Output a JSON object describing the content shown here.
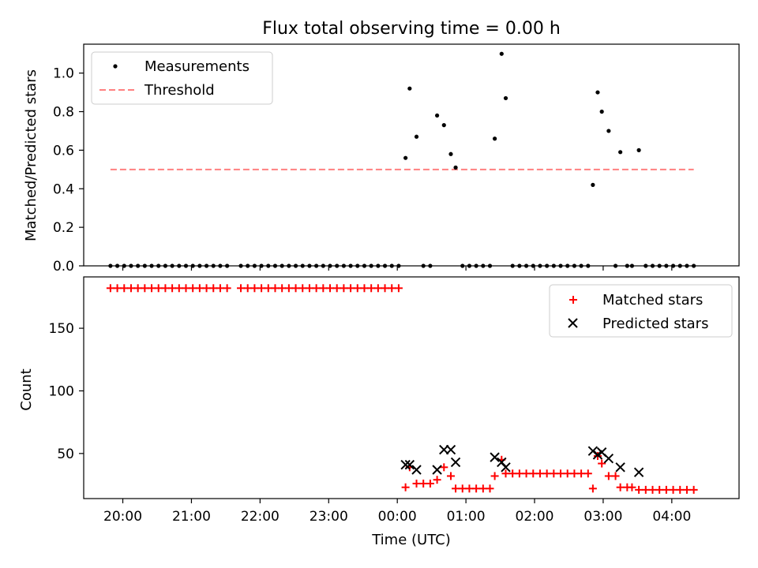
{
  "chart_data": [
    {
      "type": "scatter",
      "title": "Flux total observing time = 0.00 h",
      "xlabel": "",
      "ylabel": "Matched/Predicted stars",
      "xlim": [
        19.43,
        4.98
      ],
      "ylim": [
        0,
        1.15
      ],
      "yticks": [
        0.0,
        0.2,
        0.4,
        0.6,
        0.8,
        1.0
      ],
      "ytick_labels": [
        "0.0",
        "0.2",
        "0.4",
        "0.6",
        "0.8",
        "1.0"
      ],
      "legend": {
        "position": "top-left",
        "entries": [
          "Measurements",
          "Threshold"
        ]
      },
      "series": [
        {
          "name": "Measurements",
          "marker": "dot",
          "color": "#000000",
          "x_hours": [
            19.82,
            19.92,
            20.02,
            20.12,
            20.22,
            20.32,
            20.42,
            20.52,
            20.62,
            20.72,
            20.82,
            20.92,
            21.02,
            21.12,
            21.22,
            21.32,
            21.42,
            21.52,
            21.72,
            21.82,
            21.92,
            22.02,
            22.12,
            22.22,
            22.32,
            22.42,
            22.52,
            22.62,
            22.72,
            22.82,
            22.92,
            23.02,
            23.12,
            23.22,
            23.32,
            23.42,
            23.52,
            23.62,
            23.72,
            23.82,
            23.92,
            24.02,
            24.12,
            24.18,
            24.28,
            24.38,
            24.48,
            24.58,
            24.68,
            24.78,
            24.85,
            24.95,
            25.05,
            25.15,
            25.25,
            25.35,
            25.42,
            25.52,
            25.58,
            25.68,
            25.78,
            25.88,
            25.98,
            26.08,
            26.18,
            26.28,
            26.38,
            26.48,
            26.58,
            26.68,
            26.78,
            26.85,
            26.92,
            26.98,
            27.08,
            27.18,
            27.25,
            27.35,
            27.42,
            27.52,
            27.62,
            27.72,
            27.82,
            27.92,
            28.02,
            28.12,
            28.22,
            28.32
          ],
          "values": [
            0,
            0,
            0,
            0,
            0,
            0,
            0,
            0,
            0,
            0,
            0,
            0,
            0,
            0,
            0,
            0,
            0,
            0,
            0,
            0,
            0,
            0,
            0,
            0,
            0,
            0,
            0,
            0,
            0,
            0,
            0,
            0,
            0,
            0,
            0,
            0,
            0,
            0,
            0,
            0,
            0,
            0,
            0.56,
            0.92,
            0.67,
            0,
            0,
            0.78,
            0.73,
            0.58,
            0.51,
            0,
            0,
            0,
            0,
            0,
            0.66,
            1.1,
            0.87,
            0,
            0,
            0,
            0,
            0,
            0,
            0,
            0,
            0,
            0,
            0,
            0,
            0.42,
            0.9,
            0.8,
            0.7,
            0,
            0.59,
            0,
            0,
            0.6,
            0,
            0,
            0,
            0,
            0,
            0,
            0,
            0
          ]
        },
        {
          "name": "Threshold",
          "marker": "dashed-line",
          "color": "#ff8080",
          "x_hours": [
            19.82,
            28.32
          ],
          "values": [
            0.5,
            0.5
          ]
        }
      ]
    },
    {
      "type": "scatter",
      "title": "",
      "xlabel": "Time (UTC)",
      "ylabel": "Count",
      "xlim": [
        19.43,
        4.98
      ],
      "ylim": [
        14,
        191
      ],
      "xticks": [
        "20:00",
        "21:00",
        "22:00",
        "23:00",
        "00:00",
        "01:00",
        "02:00",
        "03:00",
        "04:00"
      ],
      "yticks": [
        50,
        100,
        150
      ],
      "ytick_labels": [
        "50",
        "100",
        "150"
      ],
      "legend": {
        "position": "top-right",
        "entries": [
          "Matched stars",
          "Predicted stars"
        ]
      },
      "series": [
        {
          "name": "Matched stars",
          "marker": "plus",
          "color": "#ff0000",
          "x_hours": [
            19.82,
            19.92,
            20.02,
            20.12,
            20.22,
            20.32,
            20.42,
            20.52,
            20.62,
            20.72,
            20.82,
            20.92,
            21.02,
            21.12,
            21.22,
            21.32,
            21.42,
            21.52,
            21.72,
            21.82,
            21.92,
            22.02,
            22.12,
            22.22,
            22.32,
            22.42,
            22.52,
            22.62,
            22.72,
            22.82,
            22.92,
            23.02,
            23.12,
            23.22,
            23.32,
            23.42,
            23.52,
            23.62,
            23.72,
            23.82,
            23.92,
            24.02,
            24.12,
            24.18,
            24.28,
            24.38,
            24.48,
            24.58,
            24.68,
            24.78,
            24.85,
            24.95,
            25.05,
            25.15,
            25.25,
            25.35,
            25.42,
            25.52,
            25.58,
            25.68,
            25.78,
            25.88,
            25.98,
            26.08,
            26.18,
            26.28,
            26.38,
            26.48,
            26.58,
            26.68,
            26.78,
            26.85,
            26.92,
            26.98,
            27.08,
            27.18,
            27.25,
            27.35,
            27.42,
            27.52,
            27.62,
            27.72,
            27.82,
            27.92,
            28.02,
            28.12,
            28.22,
            28.32
          ],
          "values": [
            182,
            182,
            182,
            182,
            182,
            182,
            182,
            182,
            182,
            182,
            182,
            182,
            182,
            182,
            182,
            182,
            182,
            182,
            182,
            182,
            182,
            182,
            182,
            182,
            182,
            182,
            182,
            182,
            182,
            182,
            182,
            182,
            182,
            182,
            182,
            182,
            182,
            182,
            182,
            182,
            182,
            182,
            23,
            39,
            26,
            26,
            26,
            29,
            39,
            32,
            22,
            22,
            22,
            22,
            22,
            22,
            32,
            45,
            34,
            34,
            34,
            34,
            34,
            34,
            34,
            34,
            34,
            34,
            34,
            34,
            34,
            22,
            48,
            42,
            32,
            32,
            23,
            23,
            23,
            21,
            21,
            21,
            21,
            21,
            21,
            21,
            21,
            21
          ]
        },
        {
          "name": "Predicted stars",
          "marker": "x",
          "color": "#000000",
          "x_hours": [
            24.12,
            24.18,
            24.28,
            24.58,
            24.68,
            24.78,
            24.85,
            25.42,
            25.52,
            25.58,
            26.85,
            26.92,
            26.98,
            27.08,
            27.25,
            27.52
          ],
          "values": [
            41,
            41,
            37,
            37,
            53,
            53,
            43,
            47,
            43,
            39,
            52,
            49,
            51,
            46,
            39,
            35
          ]
        }
      ]
    }
  ]
}
